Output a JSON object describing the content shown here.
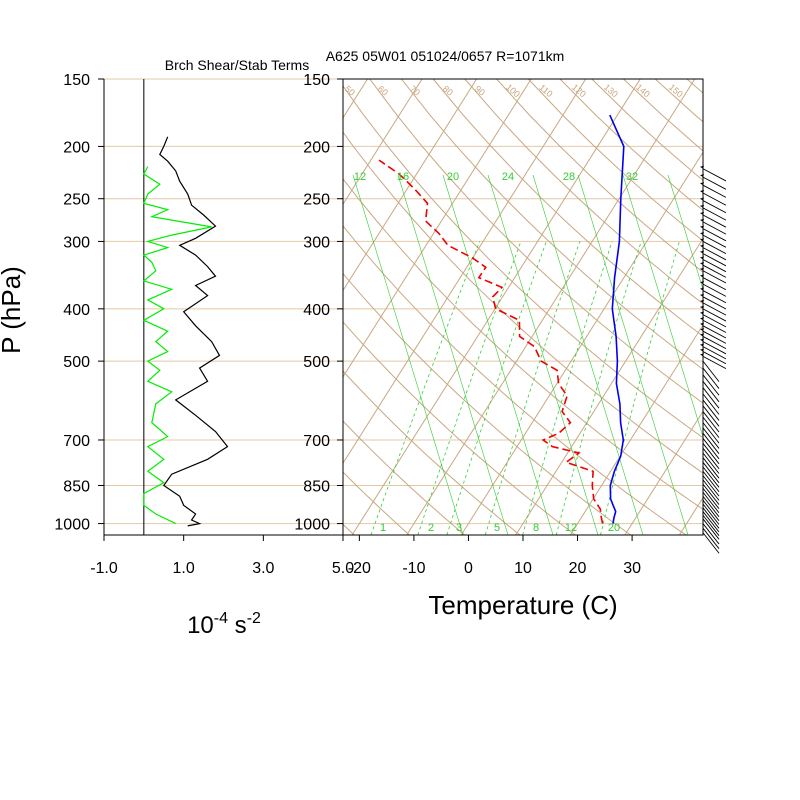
{
  "title": "A625 05W01 051024/0657 R=1071km",
  "chart_data": [
    {
      "type": "line",
      "title": "Brch Shear/Stab Terms",
      "ylabel": "P (hPa)",
      "xlabel": "10-4 s-2",
      "xlabel_parts": {
        "base": "10",
        "exp1": "-4",
        "mid": " s",
        "exp2": "-2"
      },
      "y_scale": "log",
      "ylim": [
        150,
        1050
      ],
      "xlim": [
        -1.0,
        5.0
      ],
      "x_ticks": [
        "-1.0",
        "1.0",
        "3.0",
        "5.0"
      ],
      "x_tick_values": [
        -1.0,
        1.0,
        3.0,
        5.0
      ],
      "y_ticks": [
        "150",
        "200",
        "250",
        "300",
        "400",
        "500",
        "700",
        "850",
        "1000"
      ],
      "y_tick_values": [
        150,
        200,
        250,
        300,
        400,
        500,
        700,
        850,
        1000
      ],
      "series": [
        {
          "color": "#000000",
          "points": [
            [
              0.6,
              192
            ],
            [
              0.5,
              200
            ],
            [
              0.4,
              207
            ],
            [
              0.6,
              213
            ],
            [
              0.8,
              222
            ],
            [
              0.9,
              232
            ],
            [
              1.1,
              245
            ],
            [
              1.2,
              257
            ],
            [
              1.5,
              268
            ],
            [
              1.8,
              281
            ],
            [
              1.3,
              296
            ],
            [
              0.9,
              305
            ],
            [
              1.3,
              318
            ],
            [
              1.6,
              334
            ],
            [
              1.8,
              348
            ],
            [
              1.3,
              362
            ],
            [
              1.6,
              378
            ],
            [
              1.0,
              405
            ],
            [
              1.3,
              430
            ],
            [
              1.7,
              460
            ],
            [
              1.9,
              488
            ],
            [
              1.4,
              515
            ],
            [
              1.6,
              545
            ],
            [
              0.8,
              590
            ],
            [
              1.3,
              630
            ],
            [
              1.8,
              675
            ],
            [
              2.1,
              720
            ],
            [
              1.6,
              760
            ],
            [
              0.7,
              810
            ],
            [
              0.5,
              850
            ],
            [
              0.9,
              890
            ],
            [
              1.0,
              925
            ],
            [
              1.3,
              960
            ],
            [
              1.2,
              985
            ],
            [
              1.4,
              1000
            ],
            [
              1.1,
              1010
            ]
          ]
        },
        {
          "color": "#00ee00",
          "points": [
            [
              0.1,
              218
            ],
            [
              0.0,
              225
            ],
            [
              0.4,
              235
            ],
            [
              0.1,
              245
            ],
            [
              0.0,
              255
            ],
            [
              0.6,
              262
            ],
            [
              0.2,
              270
            ],
            [
              1.7,
              282
            ],
            [
              0.7,
              292
            ],
            [
              0.1,
              300
            ],
            [
              0.6,
              308
            ],
            [
              0.0,
              318
            ],
            [
              0.2,
              328
            ],
            [
              0.3,
              340
            ],
            [
              0.0,
              355
            ],
            [
              0.7,
              368
            ],
            [
              0.1,
              385
            ],
            [
              0.5,
              400
            ],
            [
              0.0,
              420
            ],
            [
              0.6,
              440
            ],
            [
              0.3,
              460
            ],
            [
              0.6,
              480
            ],
            [
              0.1,
              500
            ],
            [
              0.4,
              520
            ],
            [
              0.1,
              545
            ],
            [
              0.7,
              570
            ],
            [
              0.3,
              600
            ],
            [
              0.2,
              650
            ],
            [
              0.6,
              690
            ],
            [
              0.1,
              720
            ],
            [
              0.5,
              760
            ],
            [
              0.1,
              800
            ],
            [
              0.5,
              840
            ],
            [
              0.0,
              880
            ],
            [
              0.0,
              925
            ],
            [
              0.3,
              960
            ],
            [
              0.8,
              1000
            ]
          ]
        }
      ]
    },
    {
      "type": "line",
      "title": "A625 05W01 051024/0657 R=1071km",
      "xlabel": "Temperature (C)",
      "y_scale": "log",
      "ylim": [
        150,
        1050
      ],
      "xlim": [
        -23,
        43
      ],
      "skew_per_decade": 62.5,
      "x_ticks": [
        "-20",
        "-10",
        "0",
        "10",
        "20",
        "30"
      ],
      "x_tick_values": [
        -20,
        -10,
        0,
        10,
        20,
        30
      ],
      "y_ticks": [
        "150",
        "200",
        "250",
        "300",
        "400",
        "500",
        "700",
        "850",
        "1000"
      ],
      "y_tick_values": [
        150,
        200,
        250,
        300,
        400,
        500,
        700,
        850,
        1000
      ],
      "mixing_ratio_labels": [
        "12",
        "16",
        "20",
        "24",
        "28",
        "32"
      ],
      "mixing_ratio_bottom_labels": [
        "1",
        "2",
        "3",
        "5",
        "8",
        "12",
        "20"
      ],
      "theta_labels": [
        "50",
        "60",
        "70",
        "80",
        "90",
        "100",
        "110",
        "120",
        "130",
        "140",
        "150"
      ],
      "series": [
        {
          "name": "temperature",
          "color": "#0000ee",
          "points": [
            [
              26.5,
              1000
            ],
            [
              26.0,
              975
            ],
            [
              25.6,
              950
            ],
            [
              24.4,
              925
            ],
            [
              23.2,
              900
            ],
            [
              21.6,
              850
            ],
            [
              20.7,
              800
            ],
            [
              20.1,
              750
            ],
            [
              18.7,
              700
            ],
            [
              16.2,
              650
            ],
            [
              13.9,
              600
            ],
            [
              10.9,
              550
            ],
            [
              8.5,
              500
            ],
            [
              5.4,
              450
            ],
            [
              1.5,
              400
            ],
            [
              -1.7,
              350
            ],
            [
              -5.0,
              300
            ],
            [
              -9.7,
              250
            ],
            [
              -15.2,
              200
            ],
            [
              -21.4,
              175
            ]
          ]
        },
        {
          "name": "dewpoint",
          "color": "#ee0000",
          "points": [
            [
              24.6,
              1000
            ],
            [
              23.5,
              970
            ],
            [
              22.5,
              940
            ],
            [
              20.1,
              900
            ],
            [
              18.3,
              850
            ],
            [
              16.8,
              800
            ],
            [
              10.8,
              770
            ],
            [
              12.1,
              740
            ],
            [
              6.5,
              720
            ],
            [
              4.0,
              700
            ],
            [
              6.1,
              680
            ],
            [
              7.0,
              650
            ],
            [
              4.2,
              620
            ],
            [
              3.3,
              580
            ],
            [
              0.3,
              550
            ],
            [
              -1.5,
              520
            ],
            [
              -5.5,
              500
            ],
            [
              -8.4,
              470
            ],
            [
              -12.3,
              450
            ],
            [
              -14.2,
              420
            ],
            [
              -19.9,
              400
            ],
            [
              -21.8,
              380
            ],
            [
              -21.2,
              365
            ],
            [
              -26.6,
              350
            ],
            [
              -26.5,
              335
            ],
            [
              -30.0,
              322
            ],
            [
              -36.0,
              305
            ],
            [
              -39.0,
              290
            ],
            [
              -42.9,
              275
            ],
            [
              -44.6,
              255
            ],
            [
              -48.6,
              240
            ],
            [
              -53.2,
              225
            ],
            [
              -58.5,
              212
            ]
          ]
        }
      ]
    }
  ],
  "wind_barb_levels": [
    220,
    228,
    236,
    244,
    252,
    260,
    268,
    276,
    284,
    292,
    300,
    308,
    316,
    324,
    332,
    340,
    350,
    360,
    370,
    380,
    390,
    400,
    410,
    420,
    430,
    440,
    450,
    460,
    470,
    480,
    490,
    500,
    515,
    530,
    545,
    560,
    575,
    590,
    605,
    620,
    635,
    650,
    665,
    680,
    695,
    710,
    725,
    740,
    755,
    770,
    785,
    800,
    815,
    830,
    845,
    860,
    875,
    890,
    905,
    920,
    935,
    950,
    965,
    980,
    1000,
    1020,
    1040
  ],
  "colors": {
    "isobar": "#e3c8a8",
    "dry_adiabat": "#c8a882",
    "mixing_ratio": "#33cc33",
    "shear": "#000000",
    "stability": "#00ee00"
  }
}
